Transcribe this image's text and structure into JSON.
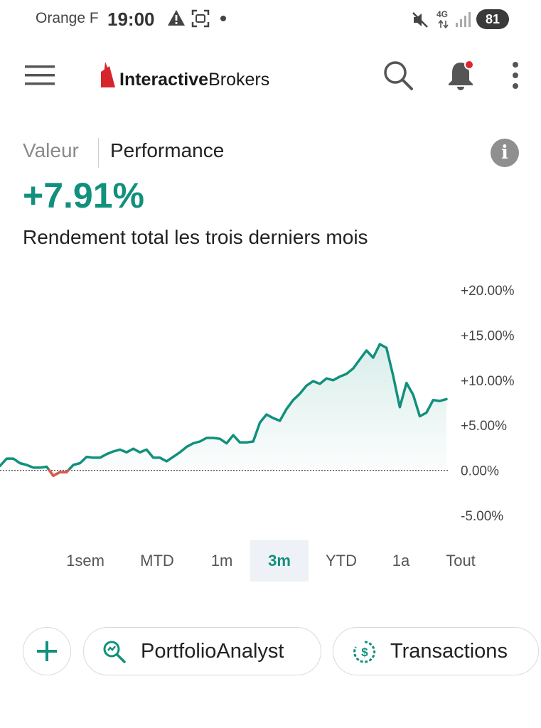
{
  "status": {
    "carrier": "Orange F",
    "time": "19:00",
    "network": "4G",
    "battery": "81"
  },
  "header": {
    "logo_bold": "Interactive",
    "logo_light": "Brokers"
  },
  "tabs": {
    "valeur": "Valeur",
    "performance": "Performance"
  },
  "performance": {
    "value": "+7.91%",
    "subtitle": "Rendement total les trois derniers mois"
  },
  "colors": {
    "accent": "#11907d",
    "negative": "#e0584a"
  },
  "chart_data": {
    "type": "line",
    "y_ticks": [
      "+20.00%",
      "+15.00%",
      "+10.00%",
      "+5.00%",
      "0.00%",
      "-5.00%"
    ],
    "ylim": [
      -5,
      20
    ],
    "baseline": 0,
    "values": [
      0.5,
      1.3,
      1.3,
      0.8,
      0.6,
      0.3,
      0.3,
      0.4,
      -0.6,
      -0.2,
      -0.2,
      0.6,
      0.8,
      1.5,
      1.4,
      1.4,
      1.8,
      2.1,
      2.3,
      2.0,
      2.4,
      2.0,
      2.3,
      1.4,
      1.4,
      1.0,
      1.5,
      2.0,
      2.6,
      3.0,
      3.2,
      3.6,
      3.6,
      3.5,
      3.0,
      3.9,
      3.1,
      3.1,
      3.2,
      5.3,
      6.2,
      5.8,
      5.5,
      6.8,
      7.8,
      8.5,
      9.4,
      9.9,
      9.6,
      10.2,
      10.0,
      10.4,
      10.7,
      11.3,
      12.3,
      13.3,
      12.5,
      14.0,
      13.6,
      10.5,
      7.0,
      9.7,
      8.4,
      6.0,
      6.4,
      7.8,
      7.7,
      7.9
    ],
    "grid": false,
    "legend": "none"
  },
  "ranges": [
    {
      "label": "1sem",
      "active": false
    },
    {
      "label": "MTD",
      "active": false
    },
    {
      "label": "1m",
      "active": false
    },
    {
      "label": "3m",
      "active": true
    },
    {
      "label": "YTD",
      "active": false
    },
    {
      "label": "1a",
      "active": false
    },
    {
      "label": "Tout",
      "active": false
    }
  ],
  "actions": {
    "portfolio_analyst": "PortfolioAnalyst",
    "transactions": "Transactions"
  }
}
